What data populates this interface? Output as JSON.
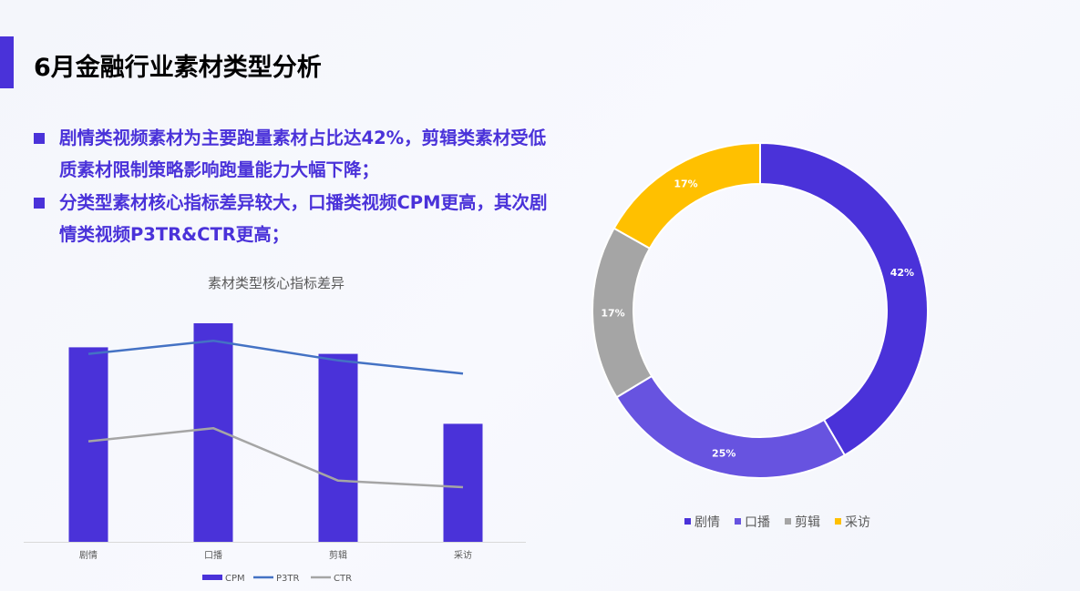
{
  "header": {
    "title": "6月金融行业素材类型分析"
  },
  "bullets": [
    "剧情类视频素材为主要跑量素材占比达42%，剪辑类素材受低质素材限制策略影响跑量能力大幅下降；",
    "分类型素材核心指标差异较大，口播类视频CPM更高，其次剧情类视频P3TR&CTR更高；"
  ],
  "colors": {
    "accent": "#4a32d9",
    "p3tr": "#4472c4",
    "ctr": "#a5a5a5",
    "kb": "#6753e0",
    "jj": "#a5a5a5",
    "cf": "#ffc000"
  },
  "chart_data": [
    {
      "type": "bar",
      "title": "素材类型核心指标差异",
      "categories": [
        "剧情",
        "口播",
        "剪辑",
        "采访"
      ],
      "series": [
        {
          "name": "CPM",
          "kind": "bar",
          "color": "#4a32d9",
          "values": [
            89,
            100,
            86,
            54
          ]
        },
        {
          "name": "P3TR",
          "kind": "line",
          "color": "#4472c4",
          "values": [
            86,
            92,
            83,
            77
          ]
        },
        {
          "name": "CTR",
          "kind": "line",
          "color": "#a5a5a5",
          "values": [
            46,
            52,
            28,
            25
          ]
        }
      ],
      "ylim": [
        0,
        100
      ],
      "axis_labels_shown": false,
      "grid": false,
      "legend": "bottom"
    },
    {
      "type": "pie",
      "donut": true,
      "labels": [
        "剧情",
        "口播",
        "剪辑",
        "采访"
      ],
      "values": [
        42,
        25,
        17,
        17
      ],
      "value_labels": [
        "42%",
        "25%",
        "17%",
        "17%"
      ],
      "colors": [
        "#4a32d9",
        "#6753e0",
        "#a5a5a5",
        "#ffc000"
      ],
      "legend": "bottom"
    }
  ]
}
